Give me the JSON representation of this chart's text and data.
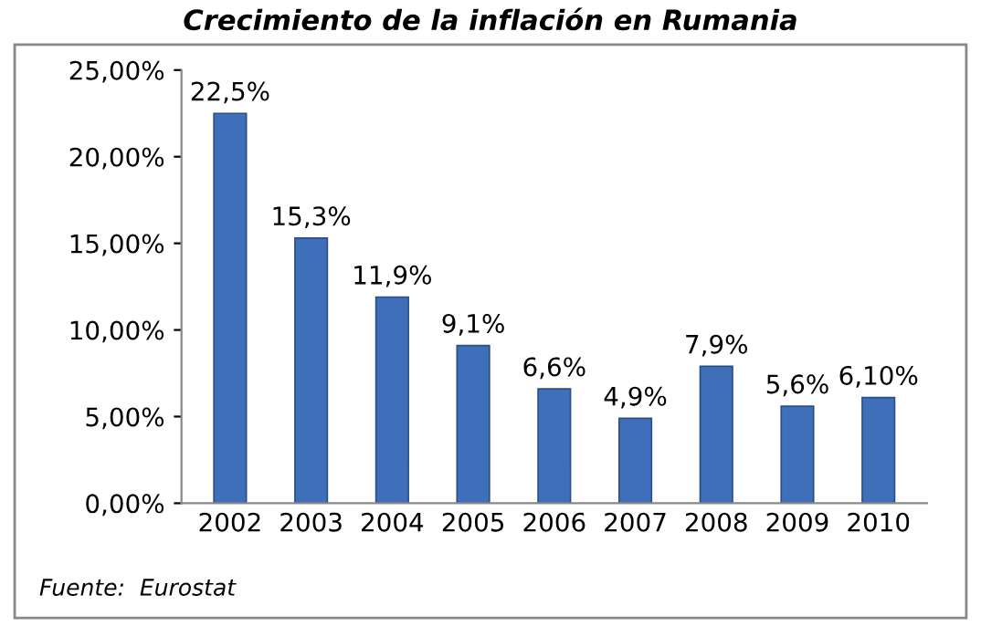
{
  "chart_data": {
    "type": "bar",
    "title": "Crecimiento de la inflación en Rumania",
    "categories": [
      "2002",
      "2003",
      "2004",
      "2005",
      "2006",
      "2007",
      "2008",
      "2009",
      "2010"
    ],
    "values": [
      22.5,
      15.3,
      11.9,
      9.1,
      6.6,
      4.9,
      7.9,
      5.6,
      6.1
    ],
    "value_labels": [
      "22,5%",
      "15,3%",
      "11,9%",
      "9,1%",
      "6,6%",
      "4,9%",
      "7,9%",
      "5,6%",
      "6,10%"
    ],
    "color": "#3e6fb8",
    "ylim": [
      0,
      25
    ],
    "yticks": [
      {
        "value": 0,
        "label": "0,00%"
      },
      {
        "value": 5,
        "label": "5,00%"
      },
      {
        "value": 10,
        "label": "10,00%"
      },
      {
        "value": 15,
        "label": "15,00%"
      },
      {
        "value": 20,
        "label": "20,00%"
      },
      {
        "value": 25,
        "label": "25,00%"
      }
    ],
    "annotations": [
      "Fuente:  Eurostat"
    ]
  }
}
